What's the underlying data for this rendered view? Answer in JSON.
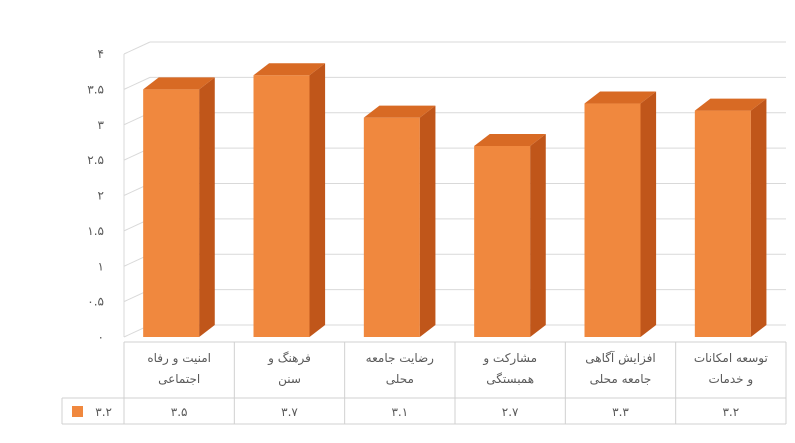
{
  "chart_data": {
    "type": "bar",
    "style": "3d-column",
    "categories": [
      [
        "امنیت و رفاه",
        "اجتماعی"
      ],
      [
        "فرهنگ و",
        "سنن"
      ],
      [
        "رضایت جامعه",
        "محلی"
      ],
      [
        "مشارکت و",
        "همبستگی"
      ],
      [
        "افزایش آگاهی",
        "جامعه محلی"
      ],
      [
        "توسعه امکانات",
        "و خدمات"
      ]
    ],
    "series": [
      {
        "name": "۳.۲",
        "values": [
          3.5,
          3.7,
          3.1,
          2.7,
          3.3,
          3.2
        ]
      }
    ],
    "value_labels": [
      "۳.۵",
      "۳.۷",
      "۳.۱",
      "۲.۷",
      "۳.۳",
      "۳.۲"
    ],
    "ytick_labels": [
      "۰",
      "۰.۵",
      "۱",
      "۱.۵",
      "۲",
      "۲.۵",
      "۳",
      "۳.۵",
      "۴"
    ],
    "yticks": [
      0,
      0.5,
      1,
      1.5,
      2,
      2.5,
      3,
      3.5,
      4
    ],
    "ylim": [
      0,
      4
    ],
    "grid": true,
    "legend_position": "data-table-left",
    "colors": {
      "bar_front": "#F0883E",
      "bar_side": "#C0561A",
      "bar_top": "#D86A24",
      "grid": "#d9d9d9",
      "text": "#595959"
    }
  }
}
